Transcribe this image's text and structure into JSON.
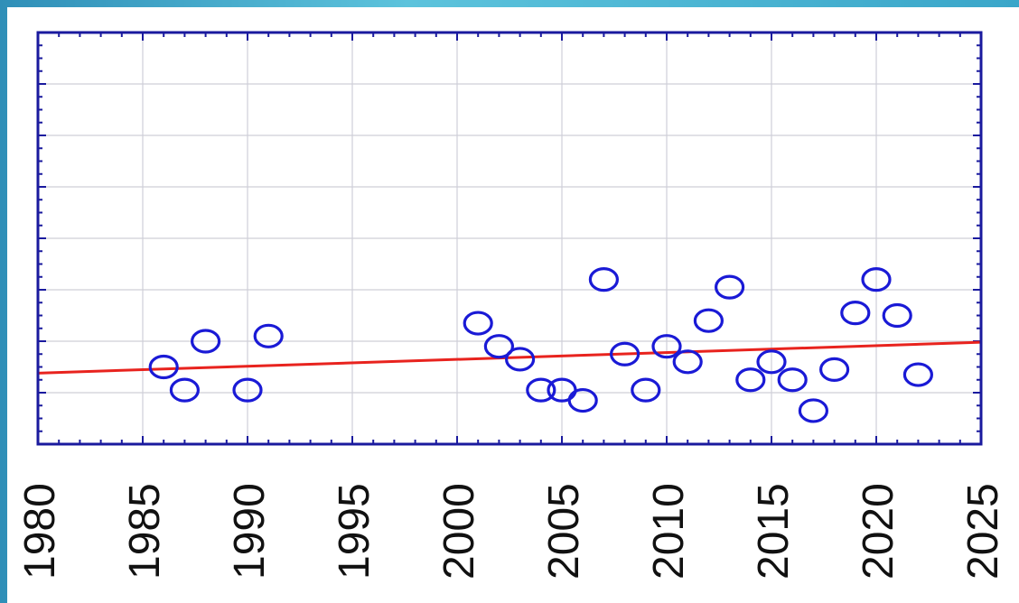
{
  "chart_data": {
    "type": "scatter",
    "title": "",
    "xlabel": "",
    "ylabel": "",
    "xlim": [
      1980,
      2025
    ],
    "ylim": [
      0,
      8
    ],
    "x_ticks": [
      "1980",
      "1985",
      "1990",
      "1995",
      "2000",
      "2005",
      "2010",
      "2015",
      "2020",
      "2025"
    ],
    "grid": true,
    "series": [
      {
        "points": [
          {
            "x": 1986,
            "y": 1.5
          },
          {
            "x": 1987,
            "y": 1.05
          },
          {
            "x": 1988,
            "y": 2.0
          },
          {
            "x": 1990,
            "y": 1.05
          },
          {
            "x": 1991,
            "y": 2.1
          },
          {
            "x": 2001,
            "y": 2.35
          },
          {
            "x": 2002,
            "y": 1.9
          },
          {
            "x": 2003,
            "y": 1.65
          },
          {
            "x": 2004,
            "y": 1.05
          },
          {
            "x": 2005,
            "y": 1.05
          },
          {
            "x": 2006,
            "y": 0.85
          },
          {
            "x": 2007,
            "y": 3.2
          },
          {
            "x": 2008,
            "y": 1.75
          },
          {
            "x": 2009,
            "y": 1.05
          },
          {
            "x": 2010,
            "y": 1.9
          },
          {
            "x": 2011,
            "y": 1.6
          },
          {
            "x": 2012,
            "y": 2.4
          },
          {
            "x": 2013,
            "y": 3.05
          },
          {
            "x": 2014,
            "y": 1.25
          },
          {
            "x": 2015,
            "y": 1.6
          },
          {
            "x": 2016,
            "y": 1.25
          },
          {
            "x": 2017,
            "y": 0.65
          },
          {
            "x": 2018,
            "y": 1.45
          },
          {
            "x": 2019,
            "y": 2.55
          },
          {
            "x": 2020,
            "y": 3.2
          },
          {
            "x": 2021,
            "y": 2.5
          },
          {
            "x": 2022,
            "y": 1.35
          }
        ]
      }
    ],
    "trend_line": {
      "x": [
        1980,
        2025
      ],
      "y": [
        1.38,
        1.98
      ]
    },
    "colors": {
      "points": "#1a1ad6",
      "trend": "#e8231e",
      "frame": "#1a1a9e",
      "grid": "#cfcfd8",
      "tick_labels": "#111111"
    }
  }
}
